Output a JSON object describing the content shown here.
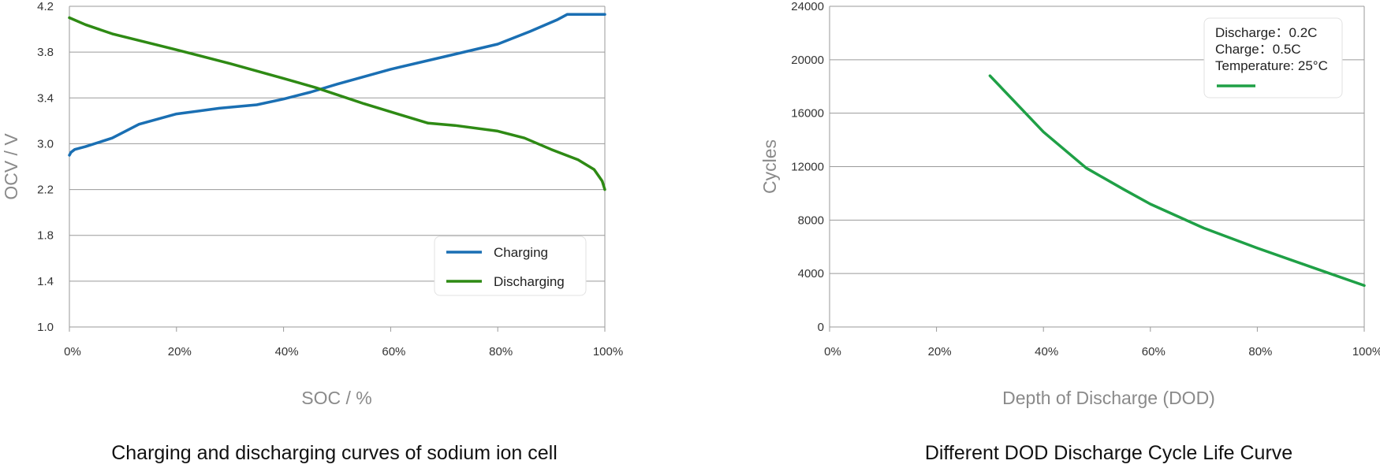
{
  "chart_data": [
    {
      "type": "line",
      "title": "Charging and discharging curves of sodium ion cell",
      "xlabel": "SOC / %",
      "ylabel": "OCV / V",
      "x_ticks": [
        "0%",
        "20%",
        "40%",
        "60%",
        "80%",
        "100%"
      ],
      "y_ticks": [
        "1.0",
        "1.4",
        "1.8",
        "2.2",
        "3.0",
        "3.4",
        "3.8",
        "4.2"
      ],
      "xlim": [
        0,
        100
      ],
      "grid": true,
      "legend_position": "bottom-right",
      "series": [
        {
          "name": "Charging",
          "color": "#1a6fb3",
          "points": [
            [
              0,
              2.8
            ],
            [
              0.3,
              2.85
            ],
            [
              1,
              2.9
            ],
            [
              3,
              2.95
            ],
            [
              8,
              3.05
            ],
            [
              13,
              3.17
            ],
            [
              20,
              3.26
            ],
            [
              28,
              3.31
            ],
            [
              35,
              3.34
            ],
            [
              40,
              3.39
            ],
            [
              45,
              3.45
            ],
            [
              50,
              3.52
            ],
            [
              60,
              3.65
            ],
            [
              70,
              3.76
            ],
            [
              80,
              3.87
            ],
            [
              86,
              3.98
            ],
            [
              91,
              4.08
            ],
            [
              93,
              4.13
            ],
            [
              96,
              4.13
            ],
            [
              100,
              4.13
            ]
          ]
        },
        {
          "name": "Discharging",
          "color": "#2e8a14",
          "points": [
            [
              0,
              4.1
            ],
            [
              3,
              4.04
            ],
            [
              8,
              3.96
            ],
            [
              14,
              3.89
            ],
            [
              20,
              3.82
            ],
            [
              30,
              3.7
            ],
            [
              40,
              3.57
            ],
            [
              46,
              3.49
            ],
            [
              55,
              3.35
            ],
            [
              62,
              3.25
            ],
            [
              67,
              3.18
            ],
            [
              72,
              3.16
            ],
            [
              80,
              3.11
            ],
            [
              85,
              3.05
            ],
            [
              90,
              2.9
            ],
            [
              95,
              2.72
            ],
            [
              98,
              2.55
            ],
            [
              99.5,
              2.35
            ],
            [
              100,
              2.2
            ]
          ]
        }
      ]
    },
    {
      "type": "line",
      "title": "Different DOD Discharge Cycle Life Curve",
      "xlabel": "Depth of Discharge (DOD)",
      "ylabel": "Cycles",
      "x_ticks": [
        "0%",
        "20%",
        "40%",
        "60%",
        "80%",
        "100%"
      ],
      "y_ticks": [
        "0",
        "4000",
        "8000",
        "12000",
        "16000",
        "20000",
        "24000"
      ],
      "xlim": [
        0,
        100
      ],
      "ylim": [
        0,
        24000
      ],
      "grid": true,
      "legend_position": "top-right",
      "legend_lines": [
        "Discharge：0.2C",
        "Charge：0.5C",
        "Temperature: 25°C"
      ],
      "series": [
        {
          "color": "#1fa046",
          "points": [
            [
              30,
              18800
            ],
            [
              35,
              16700
            ],
            [
              40,
              14600
            ],
            [
              48,
              11900
            ],
            [
              55,
              10300
            ],
            [
              60,
              9200
            ],
            [
              70,
              7400
            ],
            [
              80,
              5900
            ],
            [
              90,
              4500
            ],
            [
              100,
              3100
            ]
          ]
        }
      ]
    }
  ]
}
